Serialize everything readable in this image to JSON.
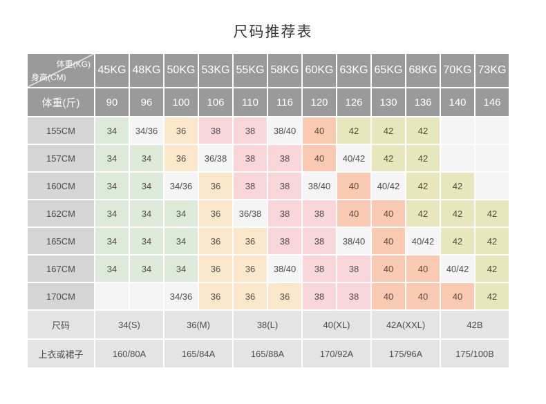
{
  "title": "尺码推荐表",
  "colors": {
    "header_bg": "#9a9a9a",
    "header_text": "#ffffff",
    "row_label_bg": "#d5d5d5",
    "footer_bg": "#e4e4e4",
    "cell_text": "#4d4d4d",
    "title_text": "#333333",
    "palette": {
      "green": "#ddeada",
      "cream": "#fbe7ca",
      "pink": "#f8d6da",
      "salmon": "#f9c9b1",
      "khaki": "#e7e6bc",
      "neutral": "#f5f5f5"
    }
  },
  "table": {
    "corner_top_right": "体重(KG)",
    "corner_bottom_left": "身高(CM)",
    "weight_jin_label": "体重(斤)",
    "size_row_label": "尺码",
    "garment_row_label": "上衣或裙子",
    "cell_colors": [
      [
        "green",
        "neutral",
        "cream",
        "pink",
        "pink",
        "neutral",
        "salmon",
        "khaki",
        "khaki",
        "khaki",
        "neutral",
        "neutral"
      ],
      [
        "green",
        "green",
        "cream",
        "neutral",
        "pink",
        "pink",
        "salmon",
        "neutral",
        "khaki",
        "khaki",
        "neutral",
        "neutral"
      ],
      [
        "green",
        "green",
        "neutral",
        "cream",
        "pink",
        "pink",
        "neutral",
        "salmon",
        "neutral",
        "khaki",
        "khaki",
        "neutral"
      ],
      [
        "green",
        "green",
        "green",
        "cream",
        "neutral",
        "pink",
        "pink",
        "salmon",
        "salmon",
        "khaki",
        "khaki",
        "khaki"
      ],
      [
        "green",
        "green",
        "green",
        "cream",
        "cream",
        "pink",
        "pink",
        "neutral",
        "salmon",
        "neutral",
        "khaki",
        "khaki"
      ],
      [
        "green",
        "green",
        "green",
        "cream",
        "cream",
        "neutral",
        "pink",
        "pink",
        "salmon",
        "salmon",
        "neutral",
        "khaki"
      ],
      [
        "neutral",
        "neutral",
        "neutral",
        "cream",
        "cream",
        "cream",
        "pink",
        "pink",
        "salmon",
        "salmon",
        "salmon",
        "khaki"
      ]
    ]
  },
  "chart_data": {
    "type": "table",
    "title": "尺码推荐表",
    "col_headers_kg": [
      "45KG",
      "48KG",
      "50KG",
      "53KG",
      "55KG",
      "58KG",
      "60KG",
      "63KG",
      "65KG",
      "68KG",
      "70KG",
      "73KG"
    ],
    "col_headers_jin": [
      "90",
      "96",
      "100",
      "106",
      "110",
      "116",
      "120",
      "126",
      "130",
      "136",
      "140",
      "146"
    ],
    "axis_units": {
      "columns": "体重(KG)",
      "rows": "身高(CM)"
    },
    "rows": [
      {
        "height_cm": "155CM",
        "recommended_sizes": [
          "34",
          "34/36",
          "36",
          "38",
          "38",
          "38/40",
          "40",
          "42",
          "42",
          "42",
          "",
          ""
        ]
      },
      {
        "height_cm": "157CM",
        "recommended_sizes": [
          "34",
          "34",
          "36",
          "36/38",
          "38",
          "38",
          "40",
          "40/42",
          "42",
          "42",
          "",
          ""
        ]
      },
      {
        "height_cm": "160CM",
        "recommended_sizes": [
          "34",
          "34",
          "34/36",
          "36",
          "38",
          "38",
          "38/40",
          "40",
          "40/42",
          "42",
          "42",
          ""
        ]
      },
      {
        "height_cm": "162CM",
        "recommended_sizes": [
          "34",
          "34",
          "34",
          "36",
          "36/38",
          "38",
          "38",
          "40",
          "40",
          "42",
          "42",
          "42"
        ]
      },
      {
        "height_cm": "165CM",
        "recommended_sizes": [
          "34",
          "34",
          "34",
          "36",
          "36",
          "38",
          "38",
          "38/40",
          "40",
          "40/42",
          "42",
          "42"
        ]
      },
      {
        "height_cm": "167CM",
        "recommended_sizes": [
          "34",
          "34",
          "34",
          "36",
          "36",
          "38/40",
          "38",
          "38",
          "40",
          "40",
          "40/42",
          "42"
        ]
      },
      {
        "height_cm": "170CM",
        "recommended_sizes": [
          "",
          "",
          "34/36",
          "36",
          "36",
          "36",
          "38",
          "38",
          "40",
          "40",
          "40",
          "42"
        ]
      }
    ],
    "size_labels": [
      "34(S)",
      "36(M)",
      "38(L)",
      "40(XL)",
      "42A(XXL)",
      "42B"
    ],
    "garment_specs": [
      "160/80A",
      "165/84A",
      "165/88A",
      "170/92A",
      "175/96A",
      "175/100B"
    ]
  }
}
